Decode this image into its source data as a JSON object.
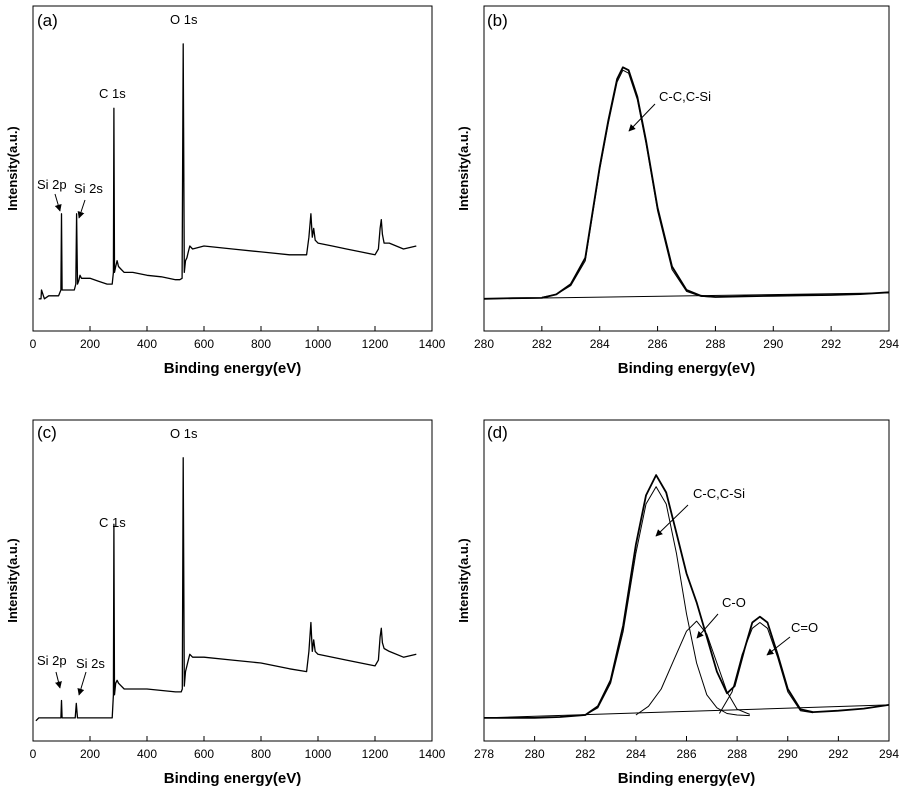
{
  "figure": {
    "panels": [
      {
        "id": "a",
        "label": "(a)"
      },
      {
        "id": "b",
        "label": "(b)"
      },
      {
        "id": "c",
        "label": "(c)"
      },
      {
        "id": "d",
        "label": "(d)"
      }
    ]
  },
  "chart_data": [
    {
      "panel": "(a)",
      "type": "line",
      "title": "",
      "xlabel": "Binding energy(eV)",
      "ylabel": "Intensity(a.u.)",
      "xlim": [
        0,
        1400
      ],
      "xticks": [
        0,
        200,
        400,
        600,
        800,
        1000,
        1200,
        1400
      ],
      "ylim": [
        0,
        100
      ],
      "y_ticks_shown": false,
      "series": [
        {
          "name": "survey",
          "x": [
            20,
            28,
            30,
            40,
            55,
            60,
            75,
            90,
            98,
            100,
            102,
            110,
            120,
            130,
            145,
            150,
            153,
            156,
            160,
            165,
            170,
            180,
            200,
            230,
            260,
            278,
            282,
            284,
            286,
            290,
            295,
            300,
            310,
            320,
            350,
            400,
            450,
            500,
            515,
            523,
            527,
            531,
            535,
            540,
            545,
            550,
            560,
            600,
            700,
            800,
            900,
            960,
            968,
            975,
            980,
            985,
            990,
            1000,
            1050,
            1100,
            1150,
            1200,
            1212,
            1218,
            1222,
            1226,
            1232,
            1250,
            1300,
            1345
          ],
          "y": [
            11,
            11,
            14,
            11,
            12,
            12,
            12,
            12,
            14,
            40,
            14,
            14,
            14,
            14,
            14,
            16,
            40,
            16,
            17,
            19,
            18,
            18,
            18,
            17,
            16,
            16,
            20,
            76,
            20,
            22,
            24,
            22,
            21,
            20,
            20,
            19,
            18.5,
            17.5,
            17.5,
            18,
            98,
            20,
            24,
            25,
            27,
            29,
            28,
            29,
            28,
            27,
            26,
            26,
            32,
            40,
            32,
            35,
            31,
            30,
            29,
            28,
            27,
            26,
            28,
            35,
            38,
            33,
            30,
            30,
            28,
            29
          ]
        }
      ],
      "annotations": [
        {
          "text": "O 1s",
          "x": 527
        },
        {
          "text": "C 1s",
          "x": 284
        },
        {
          "text": "Si 2p",
          "x": 100
        },
        {
          "text": "Si 2s",
          "x": 153
        }
      ]
    },
    {
      "panel": "(b)",
      "type": "line",
      "title": "",
      "xlabel": "Binding energy(eV)",
      "ylabel": "Intensity(a.u.)",
      "xlim": [
        280,
        294
      ],
      "xticks": [
        280,
        282,
        284,
        286,
        288,
        290,
        292,
        294
      ],
      "ylim": [
        0,
        100
      ],
      "y_ticks_shown": false,
      "series": [
        {
          "name": "measured",
          "x": [
            280,
            281,
            282,
            282.5,
            283,
            283.5,
            284,
            284.3,
            284.6,
            284.8,
            285,
            285.3,
            285.6,
            286,
            286.5,
            287,
            287.5,
            288,
            289,
            290,
            291,
            292,
            293,
            294
          ],
          "y": [
            11,
            11.2,
            11.3,
            12.5,
            16,
            25,
            56,
            72,
            86,
            90,
            89,
            80,
            65,
            42,
            22,
            14,
            12,
            11.6,
            11.8,
            12,
            12.2,
            12.3,
            12.6,
            13.2
          ]
        },
        {
          "name": "fit C-C,C-Si",
          "x": [
            282,
            282.5,
            283,
            283.5,
            284,
            284.3,
            284.6,
            284.8,
            285,
            285.3,
            285.6,
            286,
            286.5,
            287,
            287.5,
            288
          ],
          "y": [
            11.5,
            12.5,
            15.5,
            24,
            55,
            71,
            85,
            89,
            88,
            79,
            64,
            41,
            21,
            13.5,
            11.8,
            11.6
          ]
        },
        {
          "name": "background",
          "x": [
            280,
            294
          ],
          "y": [
            11,
            13
          ]
        }
      ],
      "annotations": [
        {
          "text": "C-C,C-Si",
          "x": 285
        }
      ]
    },
    {
      "panel": "(c)",
      "type": "line",
      "title": "",
      "xlabel": "Binding energy(eV)",
      "ylabel": "Intensity(a.u.)",
      "xlim": [
        0,
        1400
      ],
      "xticks": [
        0,
        200,
        400,
        600,
        800,
        1000,
        1200,
        1400
      ],
      "ylim": [
        0,
        100
      ],
      "y_ticks_shown": false,
      "series": [
        {
          "name": "survey",
          "x": [
            10,
            20,
            50,
            90,
            98,
            100,
            102,
            140,
            148,
            152,
            156,
            200,
            260,
            278,
            282,
            284,
            286,
            290,
            295,
            300,
            310,
            320,
            400,
            500,
            520,
            524,
            527,
            531,
            535,
            540,
            545,
            550,
            560,
            600,
            700,
            800,
            900,
            960,
            968,
            975,
            980,
            985,
            990,
            1000,
            1100,
            1200,
            1212,
            1218,
            1222,
            1226,
            1232,
            1250,
            1300,
            1345
          ],
          "y": [
            7,
            8,
            8,
            8,
            8,
            14,
            8,
            8,
            8,
            13,
            8,
            8,
            8,
            8,
            16,
            75,
            16,
            20,
            21,
            20,
            19,
            18,
            18,
            17,
            17,
            18,
            98,
            19,
            24,
            26,
            28,
            30,
            29,
            29,
            28,
            27,
            25,
            24,
            31,
            41,
            31,
            35,
            31,
            30,
            28,
            26,
            28,
            36,
            39,
            34,
            32,
            31,
            29,
            30
          ]
        }
      ],
      "annotations": [
        {
          "text": "O 1s",
          "x": 527
        },
        {
          "text": "C 1s",
          "x": 284
        },
        {
          "text": "Si 2p",
          "x": 100
        },
        {
          "text": "Si 2s",
          "x": 152
        }
      ]
    },
    {
      "panel": "(d)",
      "type": "line",
      "title": "",
      "xlabel": "Binding energy(eV)",
      "ylabel": "Intensity(a.u.)",
      "xlim": [
        278,
        294
      ],
      "xticks": [
        278,
        280,
        282,
        284,
        286,
        288,
        290,
        292,
        294
      ],
      "ylim": [
        0,
        100
      ],
      "y_ticks_shown": false,
      "series": [
        {
          "name": "measured envelope",
          "x": [
            278,
            280,
            281,
            282,
            282.5,
            283,
            283.5,
            284,
            284.4,
            284.8,
            285.2,
            285.6,
            286,
            286.4,
            286.8,
            287.2,
            287.6,
            287.9,
            288.3,
            288.6,
            288.9,
            289.2,
            289.6,
            290,
            290.5,
            291,
            292,
            293,
            294
          ],
          "y": [
            8,
            8,
            8.3,
            9,
            12,
            21,
            40,
            68,
            85,
            92,
            86,
            72,
            58,
            48,
            36,
            24,
            16.5,
            19,
            32,
            41,
            43,
            41,
            30,
            18,
            11,
            10,
            10.5,
            11.2,
            12.5
          ]
        },
        {
          "name": "fit C-C,C-Si",
          "x": [
            281,
            282,
            282.5,
            283,
            283.5,
            284,
            284.4,
            284.8,
            285.2,
            285.6,
            286,
            286.4,
            286.8,
            287.2,
            287.6,
            288,
            288.5
          ],
          "y": [
            8.3,
            9,
            11.5,
            20,
            38,
            65,
            82,
            88,
            82,
            65,
            44,
            27,
            16,
            11.5,
            9.5,
            9,
            8.8
          ]
        },
        {
          "name": "fit C-O",
          "x": [
            284,
            284.5,
            285,
            285.5,
            286,
            286.4,
            286.8,
            287.2,
            287.6,
            288,
            288.5
          ],
          "y": [
            9,
            12,
            18,
            28,
            38,
            41.5,
            37,
            27,
            17,
            11,
            9.2
          ]
        },
        {
          "name": "fit C=O",
          "x": [
            287.3,
            287.8,
            288.2,
            288.6,
            288.9,
            289.2,
            289.6,
            290,
            290.5,
            291
          ],
          "y": [
            9.5,
            17,
            30,
            39,
            41,
            39,
            29,
            17,
            10.5,
            9.8
          ]
        },
        {
          "name": "background",
          "x": [
            278,
            294
          ],
          "y": [
            8,
            12.5
          ]
        }
      ],
      "annotations": [
        {
          "text": "C-C,C-Si",
          "x": 284.8
        },
        {
          "text": "C-O",
          "x": 286.4
        },
        {
          "text": "C=O",
          "x": 288.9
        }
      ]
    }
  ]
}
